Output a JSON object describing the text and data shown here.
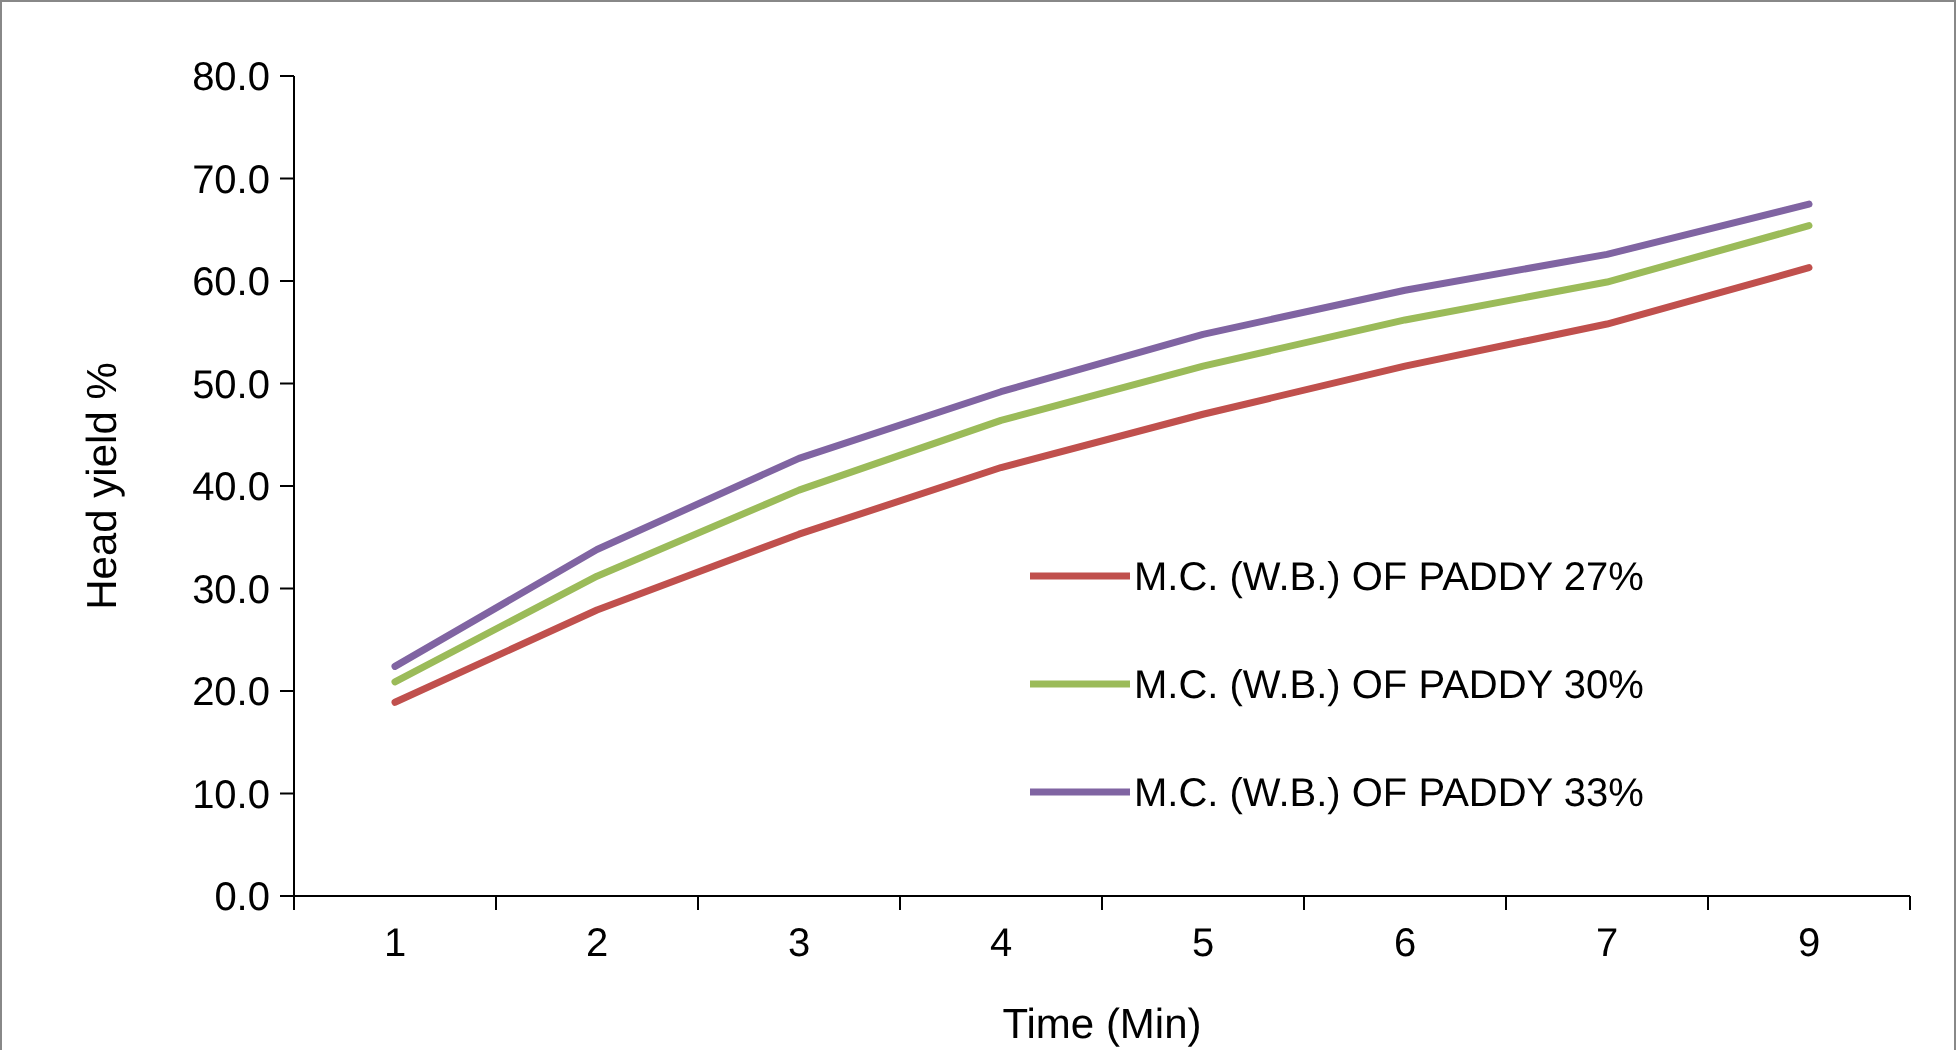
{
  "chart_data": {
    "type": "line",
    "xlabel": "Time (Min)",
    "ylabel": "Head yield %",
    "categories": [
      "1",
      "2",
      "3",
      "4",
      "5",
      "6",
      "7",
      "9"
    ],
    "series": [
      {
        "name": "M.C. (W.B.) OF PADDY 27%",
        "color": "#c0504d",
        "values": [
          18.9,
          27.9,
          35.3,
          41.8,
          47.0,
          51.7,
          55.8,
          61.3
        ]
      },
      {
        "name": "M.C. (W.B.) OF PADDY 30%",
        "color": "#9bbb59",
        "values": [
          20.9,
          31.2,
          39.6,
          46.4,
          51.7,
          56.2,
          59.9,
          65.4
        ]
      },
      {
        "name": "M.C. (W.B.) OF PADDY 33%",
        "color": "#8064a2",
        "values": [
          22.4,
          33.8,
          42.7,
          49.2,
          54.8,
          59.1,
          62.6,
          67.5
        ]
      }
    ],
    "ylim": [
      0,
      80
    ],
    "yticks": [
      {
        "value": 0,
        "label": "0.0"
      },
      {
        "value": 10,
        "label": "10.0"
      },
      {
        "value": 20,
        "label": "20.0"
      },
      {
        "value": 30,
        "label": "30.0"
      },
      {
        "value": 40,
        "label": "40.0"
      },
      {
        "value": 50,
        "label": "50.0"
      },
      {
        "value": 60,
        "label": "60.0"
      },
      {
        "value": 70,
        "label": "70.0"
      },
      {
        "value": 80,
        "label": "80.0"
      }
    ],
    "grid": false,
    "legend": "bottom right",
    "marker": "none",
    "line_style": "solid"
  }
}
